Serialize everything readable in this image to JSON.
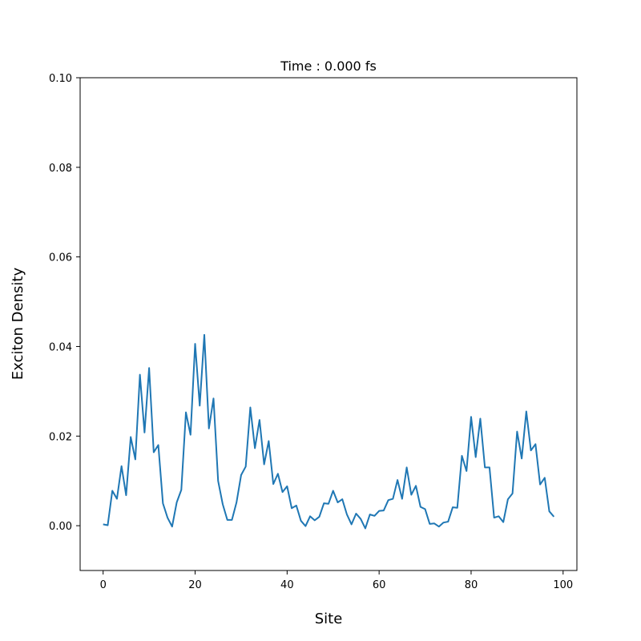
{
  "chart_data": {
    "type": "line",
    "title": "Time : 0.000 fs",
    "xlabel": "Site",
    "ylabel": "Exciton Density",
    "xlim": [
      -5,
      103
    ],
    "ylim": [
      -0.01,
      0.1
    ],
    "xticks": [
      0,
      20,
      40,
      60,
      80,
      100
    ],
    "yticks": [
      0.0,
      0.02,
      0.04,
      0.06,
      0.08,
      0.1
    ],
    "xtick_labels": [
      "0",
      "20",
      "40",
      "60",
      "80",
      "100"
    ],
    "ytick_labels": [
      "0.00",
      "0.02",
      "0.04",
      "0.06",
      "0.08",
      "0.10"
    ],
    "grid": false,
    "series": [
      {
        "color": "#1f77b4",
        "x": [
          0,
          1,
          2,
          3,
          4,
          5,
          6,
          7,
          8,
          9,
          10,
          11,
          12,
          13,
          14,
          15,
          16,
          17,
          18,
          19,
          20,
          21,
          22,
          23,
          24,
          25,
          26,
          27,
          28,
          29,
          30,
          31,
          32,
          33,
          34,
          35,
          36,
          37,
          38,
          39,
          40,
          41,
          42,
          43,
          44,
          45,
          46,
          47,
          48,
          49,
          50,
          51,
          52,
          53,
          54,
          55,
          56,
          57,
          58,
          59,
          60,
          61,
          62,
          63,
          64,
          65,
          66,
          67,
          68,
          69,
          70,
          71,
          72,
          73,
          74,
          75,
          76,
          77,
          78,
          79,
          80,
          81,
          82,
          83,
          84,
          85,
          86,
          87,
          88,
          89,
          90,
          91,
          92,
          93,
          94,
          95,
          96,
          97,
          98
        ],
        "y": [
          0.0003,
          0.0001,
          0.0078,
          0.006,
          0.0133,
          0.0068,
          0.0198,
          0.0148,
          0.0337,
          0.0208,
          0.0352,
          0.0164,
          0.018,
          0.005,
          0.0018,
          -0.0002,
          0.0052,
          0.008,
          0.0253,
          0.0203,
          0.0406,
          0.0268,
          0.0426,
          0.0217,
          0.0284,
          0.01,
          0.0048,
          0.0013,
          0.0013,
          0.0052,
          0.0113,
          0.0132,
          0.0264,
          0.0173,
          0.0236,
          0.0137,
          0.0189,
          0.0093,
          0.0116,
          0.0075,
          0.0088,
          0.0039,
          0.0045,
          0.0011,
          -0.0001,
          0.0021,
          0.0012,
          0.002,
          0.005,
          0.0049,
          0.0078,
          0.0052,
          0.0059,
          0.0025,
          0.0003,
          0.0027,
          0.0015,
          -0.0006,
          0.0025,
          0.0022,
          0.0033,
          0.0034,
          0.0057,
          0.006,
          0.0102,
          0.006,
          0.013,
          0.0069,
          0.0089,
          0.0042,
          0.0037,
          0.0004,
          0.0005,
          -0.0002,
          0.0007,
          0.0009,
          0.0041,
          0.004,
          0.0156,
          0.0122,
          0.0243,
          0.0153,
          0.0239,
          0.013,
          0.013,
          0.0018,
          0.0021,
          0.0008,
          0.0059,
          0.0072,
          0.021,
          0.015,
          0.0255,
          0.0168,
          0.0182,
          0.0092,
          0.0107,
          0.0032,
          0.002
        ]
      }
    ]
  }
}
